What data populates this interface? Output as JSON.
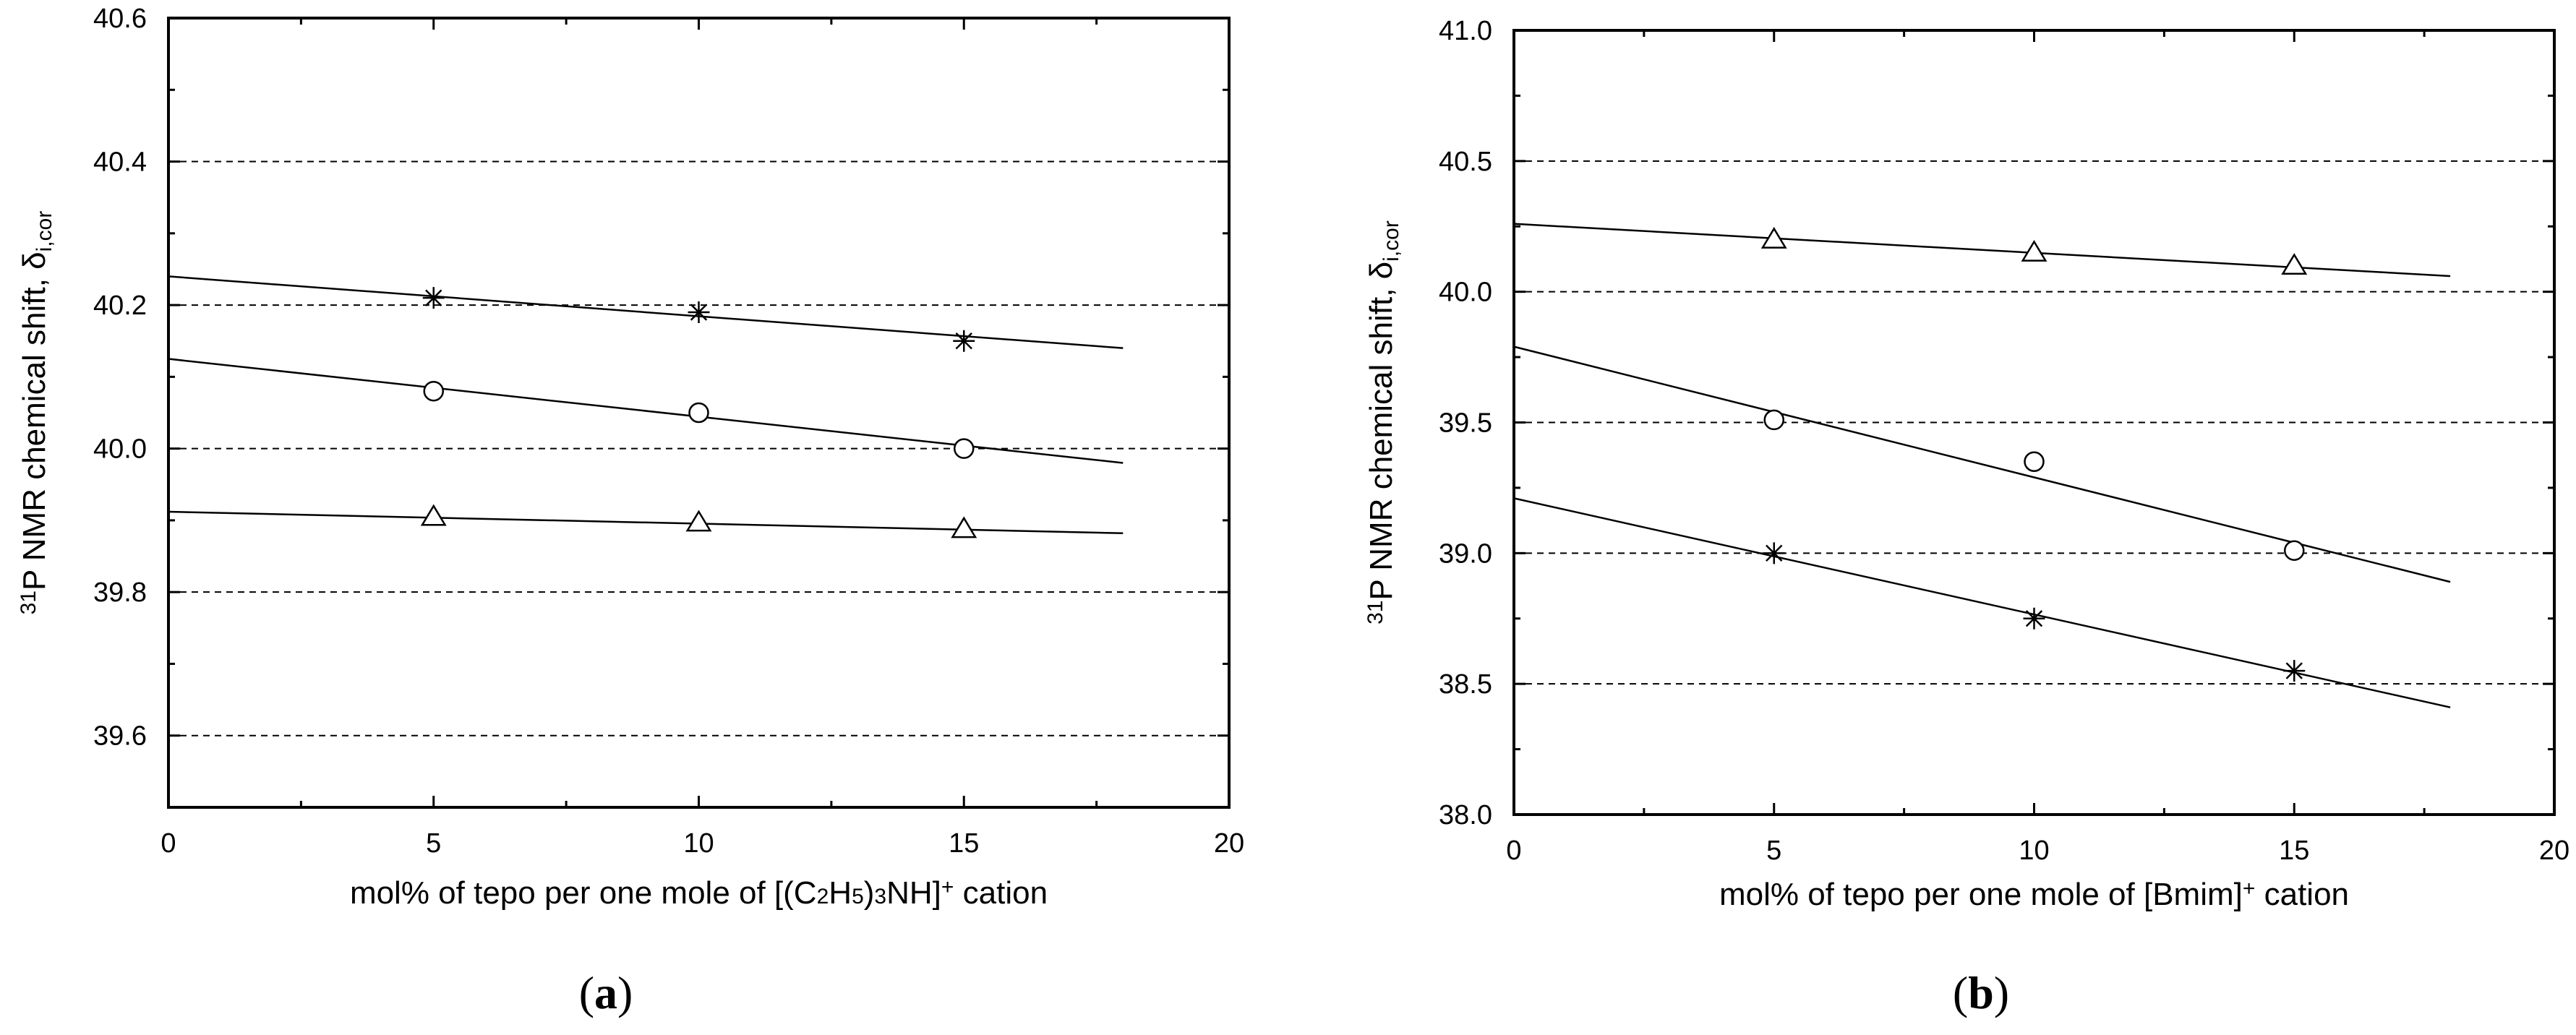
{
  "chart_data": [
    {
      "type": "scatter",
      "panel_label": [
        "(",
        "a",
        ")"
      ],
      "xlabel_parts": [
        "mol% of tepo per one mole of [(C",
        "2",
        "H",
        "5",
        ")",
        "3",
        "NH]",
        "+",
        " cation"
      ],
      "ylabel_parts": [
        "31",
        "P NMR chemical shift, ",
        "δ",
        "i,cor"
      ],
      "xlim": [
        0,
        20
      ],
      "ylim": [
        39.5,
        40.6
      ],
      "x_ticks": [
        0,
        5,
        10,
        15,
        20
      ],
      "x_tick_labels": [
        "0",
        "5",
        "10",
        "15",
        "20"
      ],
      "y_ticks": [
        39.6,
        39.8,
        40.0,
        40.2,
        40.4,
        40.6
      ],
      "y_tick_labels": [
        "39.6",
        "39.8",
        "40.0",
        "40.2",
        "40.4",
        "40.6"
      ],
      "gridlines_y": [
        39.6,
        39.8,
        40.0,
        40.2,
        40.4
      ],
      "series": [
        {
          "name": "star",
          "marker": "star",
          "x": [
            5,
            10,
            15
          ],
          "y": [
            40.21,
            40.19,
            40.15
          ],
          "fit_x": [
            0,
            18
          ],
          "fit_y": [
            40.24,
            40.14
          ]
        },
        {
          "name": "circle",
          "marker": "circle",
          "x": [
            5,
            10,
            15
          ],
          "y": [
            40.08,
            40.05,
            40.0
          ],
          "fit_x": [
            0,
            18
          ],
          "fit_y": [
            40.125,
            39.98
          ]
        },
        {
          "name": "triangle",
          "marker": "triangle",
          "x": [
            5,
            10,
            15
          ],
          "y": [
            39.905,
            39.897,
            39.888
          ],
          "fit_x": [
            0,
            18
          ],
          "fit_y": [
            39.912,
            39.882
          ]
        }
      ]
    },
    {
      "type": "scatter",
      "panel_label": [
        "(",
        "b",
        ")"
      ],
      "xlabel_parts": [
        "mol% of tepo per one mole of [Bmim]",
        "+",
        " cation"
      ],
      "ylabel_parts": [
        "31",
        "P NMR chemical shift, ",
        "δ",
        "i,cor"
      ],
      "xlim": [
        0,
        20
      ],
      "ylim": [
        38.0,
        41.0
      ],
      "x_ticks": [
        0,
        5,
        10,
        15,
        20
      ],
      "x_tick_labels": [
        "0",
        "5",
        "10",
        "15",
        "20"
      ],
      "y_ticks": [
        38.0,
        38.5,
        39.0,
        39.5,
        40.0,
        40.5,
        41.0
      ],
      "y_tick_labels": [
        "38.0",
        "38.5",
        "39.0",
        "39.5",
        "40.0",
        "40.5",
        "41.0"
      ],
      "gridlines_y": [
        38.5,
        39.0,
        39.5,
        40.0,
        40.5
      ],
      "series": [
        {
          "name": "triangle",
          "marker": "triangle",
          "x": [
            5,
            10,
            15
          ],
          "y": [
            40.2,
            40.15,
            40.1
          ],
          "fit_x": [
            0,
            18
          ],
          "fit_y": [
            40.26,
            40.06
          ]
        },
        {
          "name": "circle",
          "marker": "circle",
          "x": [
            5,
            10,
            15
          ],
          "y": [
            39.51,
            39.35,
            39.01
          ],
          "fit_x": [
            0,
            18
          ],
          "fit_y": [
            39.79,
            38.89
          ]
        },
        {
          "name": "star",
          "marker": "star",
          "x": [
            5,
            10,
            15
          ],
          "y": [
            39.0,
            38.75,
            38.55
          ],
          "fit_x": [
            0,
            18
          ],
          "fit_y": [
            39.21,
            38.41
          ]
        }
      ]
    }
  ]
}
